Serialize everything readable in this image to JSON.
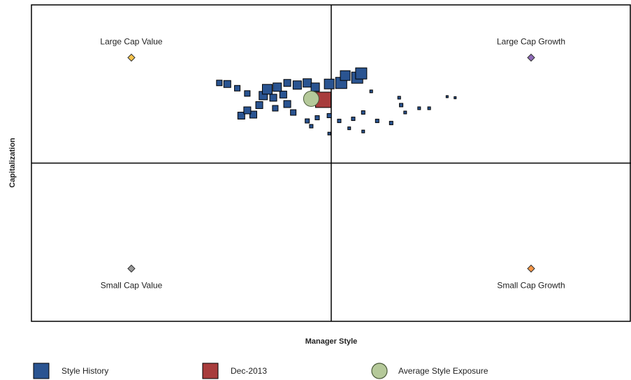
{
  "chart_data": {
    "type": "scatter",
    "xlabel": "Manager Style",
    "ylabel": "Capitalization",
    "xlim": [
      -1.5,
      1.5
    ],
    "ylim": [
      -1.5,
      1.5
    ],
    "benchmarks": [
      {
        "name": "Large Cap Value",
        "x": -1,
        "y": 1,
        "color": "#f7c34c"
      },
      {
        "name": "Large Cap Growth",
        "x": 1,
        "y": 1,
        "color": "#8e6ab8"
      },
      {
        "name": "Small Cap Value",
        "x": -1,
        "y": -1,
        "color": "#999999"
      },
      {
        "name": "Small Cap Growth",
        "x": 1,
        "y": -1,
        "color": "#f79646"
      }
    ],
    "series": [
      {
        "name": "Style History",
        "color": "#2a5491",
        "marker": "square",
        "x": [
          0.15,
          0.13,
          0.07,
          0.05,
          -0.01,
          -0.08,
          -0.12,
          -0.17,
          -0.22,
          -0.27,
          -0.32,
          -0.34,
          -0.29,
          -0.24,
          -0.22,
          -0.28,
          -0.36,
          -0.42,
          -0.45,
          -0.39,
          -0.52,
          -0.47,
          -0.56,
          -0.42,
          -0.19,
          -0.12,
          -0.07,
          -0.01,
          0.04,
          0.11,
          0.16,
          0.23,
          0.3,
          0.35,
          0.37,
          0.44,
          0.49,
          0.34,
          0.2,
          0.58,
          0.62,
          -0.1,
          -0.01,
          0.16,
          0.09
        ],
        "values": [
          0.85,
          0.81,
          0.83,
          0.76,
          0.75,
          0.72,
          0.76,
          0.74,
          0.76,
          0.72,
          0.7,
          0.64,
          0.62,
          0.65,
          0.56,
          0.52,
          0.55,
          0.5,
          0.45,
          0.46,
          0.75,
          0.71,
          0.76,
          0.66,
          0.48,
          0.4,
          0.43,
          0.45,
          0.4,
          0.42,
          0.48,
          0.4,
          0.38,
          0.55,
          0.48,
          0.52,
          0.52,
          0.62,
          0.68,
          0.63,
          0.62,
          0.35,
          0.28,
          0.3,
          0.33
        ],
        "sizes": [
          16,
          16,
          14,
          16,
          14,
          12,
          12,
          12,
          10,
          12,
          14,
          12,
          10,
          10,
          10,
          8,
          10,
          10,
          10,
          10,
          10,
          8,
          8,
          8,
          8,
          6,
          6,
          6,
          5,
          5,
          5,
          5,
          5,
          5,
          4,
          4,
          4,
          4,
          4,
          3,
          3,
          5,
          4,
          4,
          4
        ]
      },
      {
        "name": "Dec-2013",
        "color": "#a83c3c",
        "marker": "square",
        "x": [
          -0.04
        ],
        "values": [
          0.6
        ],
        "sizes": [
          22
        ]
      },
      {
        "name": "Average Style Exposure",
        "color": "#b5c99a",
        "marker": "circle",
        "x": [
          -0.1
        ],
        "values": [
          0.61
        ],
        "sizes": [
          22
        ]
      }
    ]
  }
}
